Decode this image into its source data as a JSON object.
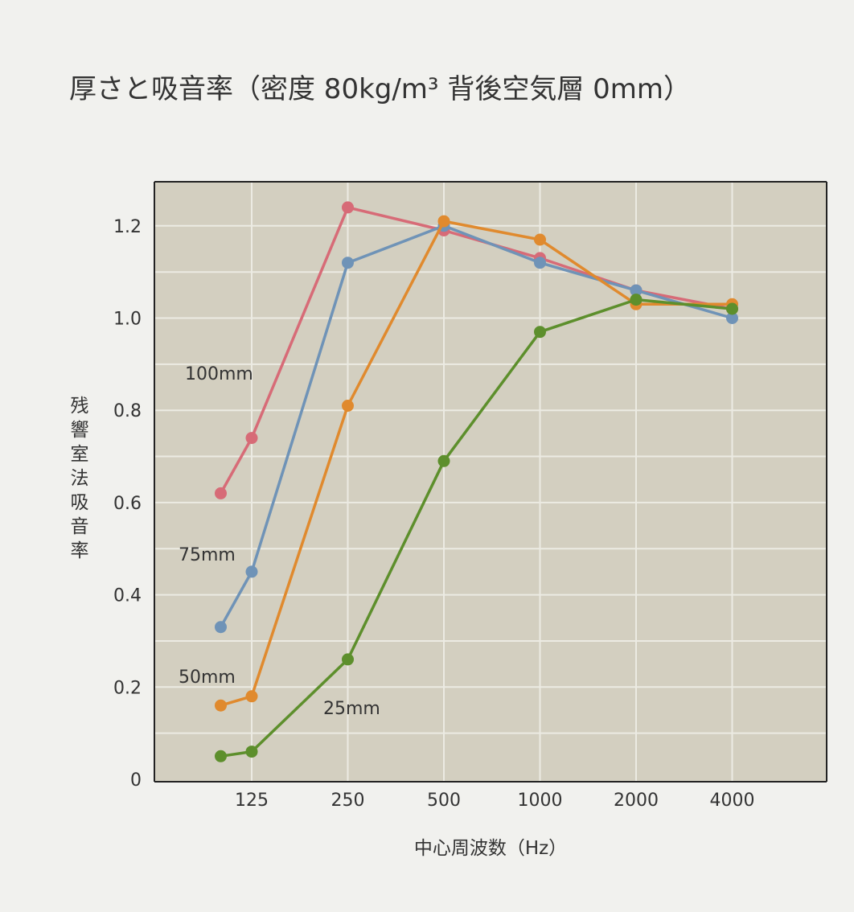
{
  "chart_data": {
    "type": "line",
    "title": "厚さと吸音率（密度 80kg/m³ 背後空気層 0mm）",
    "xlabel": "中心周波数（Hz）",
    "ylabel": "残響室法吸音率",
    "x_ticks": [
      "125",
      "250",
      "500",
      "1000",
      "2000",
      "4000"
    ],
    "y_ticks": [
      "0",
      "0.2",
      "0.4",
      "0.6",
      "0.8",
      "1.0",
      "1.2"
    ],
    "ylim": [
      0,
      1.3
    ],
    "x_scale": "log",
    "grid": true,
    "series": [
      {
        "name": "100mm",
        "color": "#d76b77",
        "x": [
          100,
          125,
          250,
          500,
          1000,
          2000,
          4000
        ],
        "y": [
          0.62,
          0.74,
          1.24,
          1.19,
          1.13,
          1.06,
          1.02
        ]
      },
      {
        "name": "75mm",
        "color": "#6f93b7",
        "x": [
          100,
          125,
          250,
          500,
          1000,
          2000,
          4000
        ],
        "y": [
          0.33,
          0.45,
          1.12,
          1.2,
          1.12,
          1.06,
          1.0
        ]
      },
      {
        "name": "50mm",
        "color": "#e08a2e",
        "x": [
          100,
          125,
          250,
          500,
          1000,
          2000,
          4000
        ],
        "y": [
          0.16,
          0.18,
          0.81,
          1.21,
          1.17,
          1.03,
          1.03
        ]
      },
      {
        "name": "25mm",
        "color": "#5d8f2c",
        "x": [
          100,
          125,
          250,
          500,
          1000,
          2000,
          4000
        ],
        "y": [
          0.05,
          0.06,
          0.26,
          0.69,
          0.97,
          1.04,
          1.02
        ]
      }
    ]
  },
  "colors": {
    "plot_bg": "#d3cfc0",
    "grid": "#ecebe3",
    "axis": "#222222",
    "text": "#333333"
  }
}
